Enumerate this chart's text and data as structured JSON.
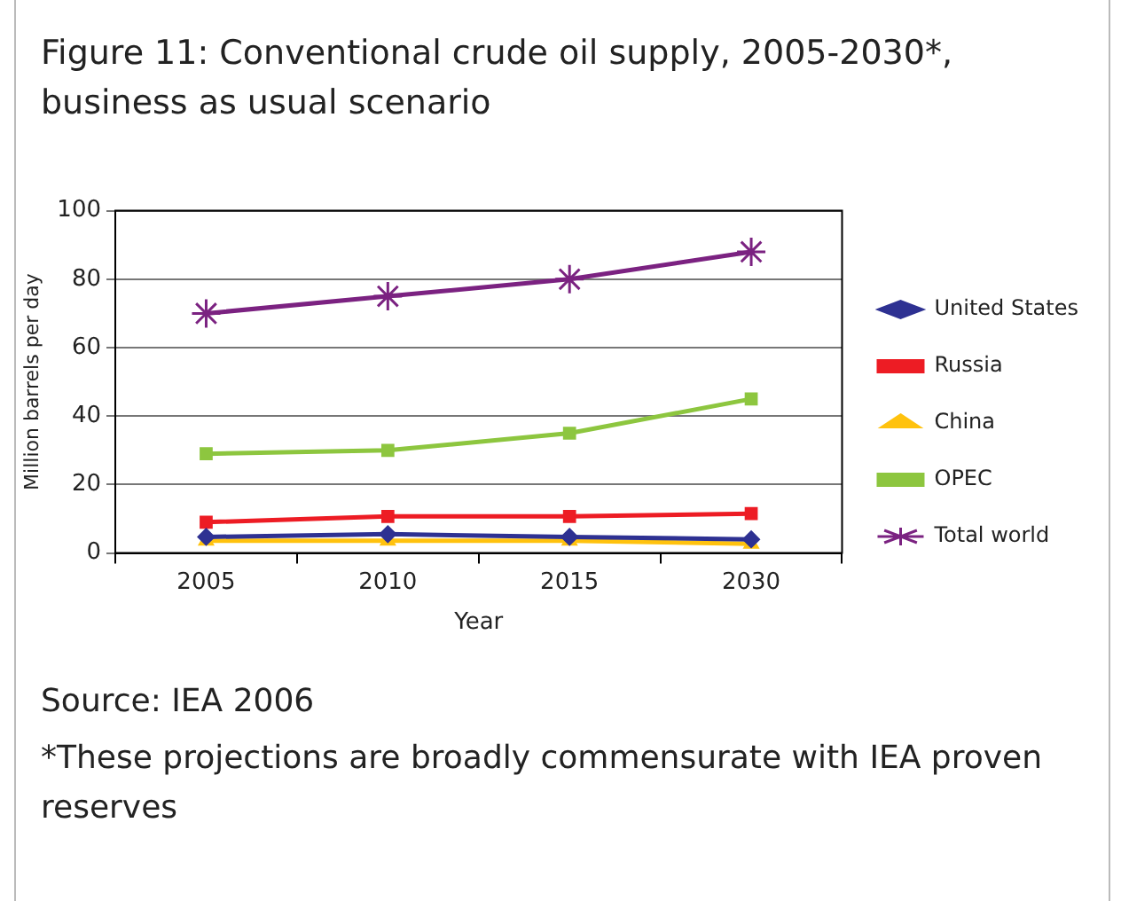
{
  "chart_data": {
    "type": "line",
    "title": "Figure 11: Conventional crude oil supply, 2005-2030*, business as usual scenario",
    "xlabel": "Year",
    "ylabel": "Million barrels per day",
    "categories": [
      "2005",
      "2010",
      "2015",
      "2030"
    ],
    "series": [
      {
        "name": "United States",
        "color": "#2e3192",
        "marker": "diamond",
        "values": [
          4.7,
          5.5,
          4.7,
          4
        ]
      },
      {
        "name": "Russia",
        "color": "#ed1c24",
        "marker": "square",
        "values": [
          9,
          10.7,
          10.7,
          11.5
        ]
      },
      {
        "name": "China",
        "color": "#ffc20e",
        "marker": "triangle",
        "values": [
          3.6,
          3.6,
          3.6,
          2.7
        ]
      },
      {
        "name": "OPEC",
        "color": "#8dc63f",
        "marker": "square",
        "values": [
          29,
          30,
          35,
          45
        ]
      },
      {
        "name": "Total world",
        "color": "#7b2281",
        "marker": "cross",
        "values": [
          70,
          75,
          80,
          88
        ]
      }
    ],
    "ylim": [
      0,
      100
    ],
    "yticks": [
      0,
      20,
      40,
      60,
      80,
      100
    ],
    "grid": "y",
    "legend": "right",
    "line_style": "solid",
    "annotations": [
      "Source: IEA 2006",
      "*These projections are broadly commensurate with IEA proven reserves"
    ]
  }
}
